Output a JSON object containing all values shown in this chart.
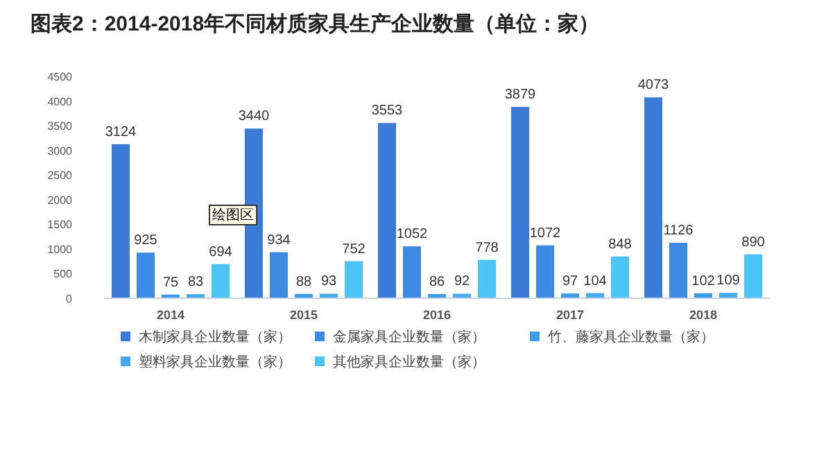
{
  "chart_data": {
    "type": "bar",
    "title": "图表2：2014-2018年不同材质家具生产企业数量（单位：家）",
    "categories": [
      "2014",
      "2015",
      "2016",
      "2017",
      "2018"
    ],
    "series": [
      {
        "name": "木制家具企业数量（家）",
        "color": "#3a7bd8",
        "values": [
          3124,
          3440,
          3553,
          3879,
          4073
        ]
      },
      {
        "name": "金属家具企业数量（家）",
        "color": "#3c8ae2",
        "values": [
          925,
          934,
          1052,
          1072,
          1126
        ]
      },
      {
        "name": "竹、藤家具企业数量（家）",
        "color": "#3d9ae6",
        "values": [
          75,
          88,
          86,
          97,
          102
        ]
      },
      {
        "name": "塑料家具企业数量（家）",
        "color": "#45abea",
        "values": [
          83,
          93,
          92,
          104,
          109
        ]
      },
      {
        "name": "其他家具企业数量（家）",
        "color": "#4cc4f6",
        "values": [
          694,
          752,
          778,
          848,
          890
        ]
      }
    ],
    "ylim": [
      0,
      4500
    ],
    "yticks": [
      0,
      500,
      1000,
      1500,
      2000,
      2500,
      3000,
      3500,
      4000,
      4500
    ],
    "data_labels": true,
    "grid": false,
    "legend": "bottom",
    "annotations": [
      "绘图区"
    ]
  }
}
